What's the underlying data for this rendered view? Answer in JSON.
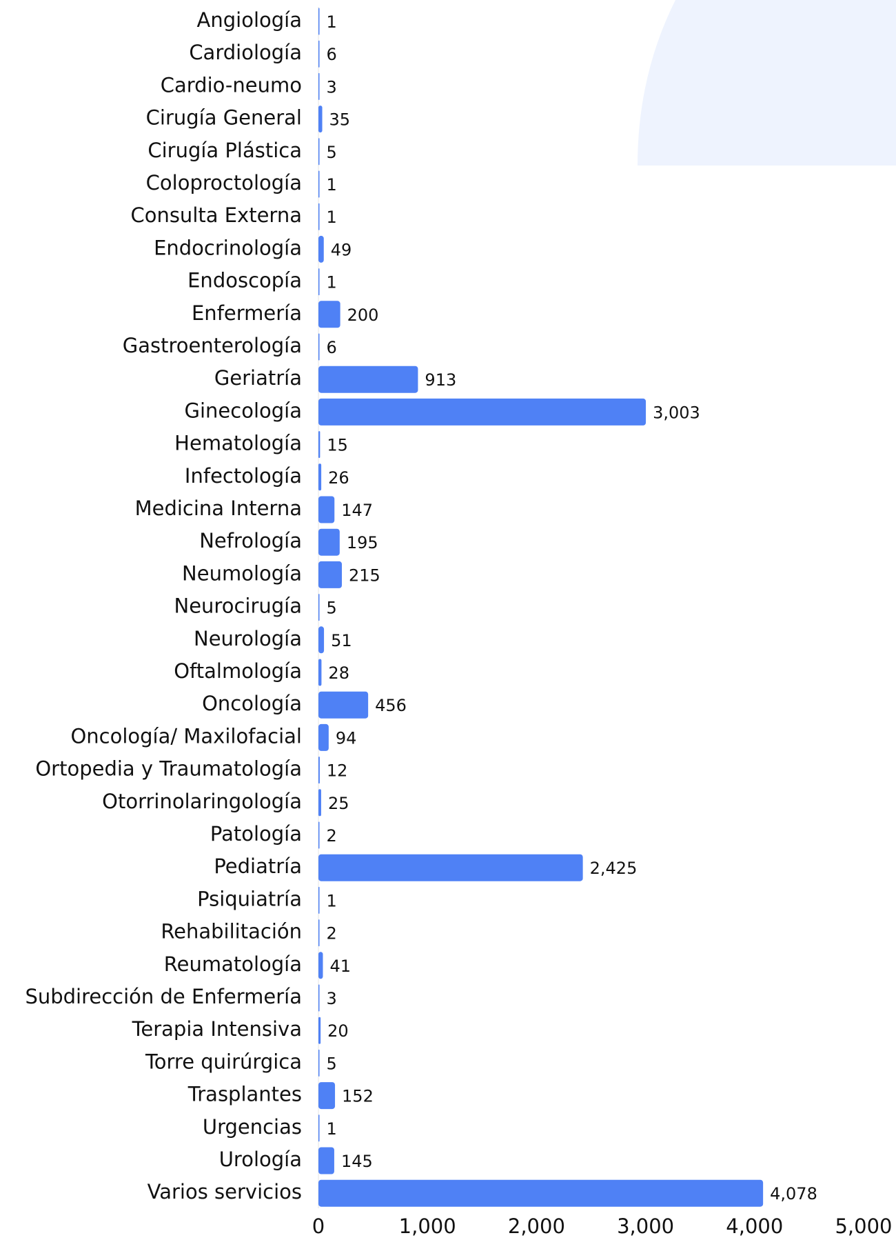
{
  "chart_data": {
    "type": "bar",
    "orientation": "horizontal",
    "color": "#4f81f5",
    "categories": [
      "Angiología",
      "Cardiología",
      "Cardio-neumo",
      "Cirugía General",
      "Cirugía Plástica",
      "Coloproctología",
      "Consulta Externa",
      "Endocrinología",
      "Endoscopía",
      "Enfermería",
      "Gastroenterología",
      "Geriatría",
      "Ginecología",
      "Hematología",
      "Infectología",
      "Medicina Interna",
      "Nefrología",
      "Neumología",
      "Neurocirugía",
      "Neurología",
      "Oftalmología",
      "Oncología",
      "Oncología/ Maxilofacial",
      "Ortopedia y Traumatología",
      "Otorrinolaringología",
      "Patología",
      "Pediatría",
      "Psiquiatría",
      "Rehabilitación",
      "Reumatología",
      "Subdirección de Enfermería",
      "Terapia Intensiva",
      "Torre quirúrgica",
      "Trasplantes",
      "Urgencias",
      "Urología",
      "Varios servicios"
    ],
    "values": [
      1,
      6,
      3,
      35,
      5,
      1,
      1,
      49,
      1,
      200,
      6,
      913,
      3003,
      15,
      26,
      147,
      195,
      215,
      5,
      51,
      28,
      456,
      94,
      12,
      25,
      2,
      2425,
      1,
      2,
      41,
      3,
      20,
      5,
      152,
      1,
      145,
      4078
    ],
    "value_labels": [
      "1",
      "6",
      "3",
      "35",
      "5",
      "1",
      "1",
      "49",
      "1",
      "200",
      "6",
      "913",
      "3,003",
      "15",
      "26",
      "147",
      "195",
      "215",
      "5",
      "51",
      "28",
      "456",
      "94",
      "12",
      "25",
      "2",
      "2,425",
      "1",
      "2",
      "41",
      "3",
      "20",
      "5",
      "152",
      "1",
      "145",
      "4,078"
    ],
    "xlim": [
      0,
      5000
    ],
    "xticks": [
      0,
      {
        "value": 1000,
        "label": "1,000"
      },
      {
        "value": 2000,
        "label": "2,000"
      },
      {
        "value": 3000,
        "label": "3,000"
      },
      {
        "value": 4000,
        "label": "4,000"
      },
      {
        "value": 5000,
        "label": "5,000"
      }
    ]
  }
}
